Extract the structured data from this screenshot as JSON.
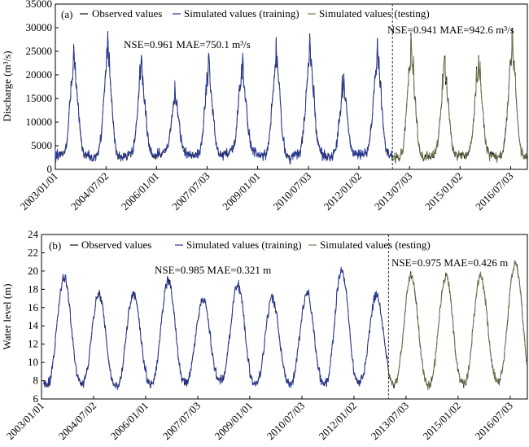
{
  "chart_data": [
    {
      "type": "line",
      "panel_label": "(a)",
      "ylabel": "Discharge (m³/s)",
      "xlabel": "",
      "ylim": [
        0,
        35000
      ],
      "y_ticks": [
        0,
        5000,
        10000,
        15000,
        20000,
        25000,
        30000,
        35000
      ],
      "x_tick_labels": [
        "2003/01/01",
        "2004/07/02",
        "2006/01/01",
        "2007/07/03",
        "2009/01/01",
        "2010/07/03",
        "2012/01/02",
        "2013/07/03",
        "2015/01/02",
        "2016/07/03"
      ],
      "legend": [
        "Observed values",
        "Simulated values (training)",
        "Simulated values (testing)"
      ],
      "legend_position": "top",
      "series_colors": {
        "observed": "#111111",
        "training": "#2a3a9c",
        "testing": "#6f7a4e"
      },
      "annotations": [
        {
          "text": "NSE=0.961 MAE=750.1  m³/s",
          "region": "training"
        },
        {
          "text": "NSE=0.941 MAE=942.6 m³/s",
          "region": "testing"
        }
      ],
      "train_test_split": "2012/12/31",
      "annual_peaks": {
        "years": [
          2003,
          2004,
          2005,
          2006,
          2007,
          2008,
          2009,
          2010,
          2011,
          2012,
          2013,
          2014,
          2015,
          2016
        ],
        "peak_values": [
          26500,
          29300,
          24200,
          18000,
          24000,
          24000,
          28000,
          28800,
          20300,
          27800,
          29000,
          24000,
          24200,
          30000
        ],
        "baseflow": [
          3000,
          2500,
          2800,
          3200,
          3000,
          3500,
          2600,
          3200,
          2800,
          3000,
          2500,
          2800,
          3000,
          2700
        ]
      },
      "series": [
        {
          "name": "Observed values",
          "values_description_free": true
        },
        {
          "name": "Simulated values (training)"
        },
        {
          "name": "Simulated values (testing)"
        }
      ]
    },
    {
      "type": "line",
      "panel_label": "(b)",
      "ylabel": "Water level (m)",
      "xlabel": "",
      "ylim": [
        6,
        24
      ],
      "y_ticks": [
        6,
        8,
        10,
        12,
        14,
        16,
        18,
        20,
        22,
        24
      ],
      "x_tick_labels": [
        "2003/01/01",
        "2004/07/02",
        "2006/01/01",
        "2007/07/03",
        "2009/01/01",
        "2010/07/03",
        "2012/01/02",
        "2013/07/03",
        "2015/01/02",
        "2016/07/03"
      ],
      "legend": [
        "Observed values",
        "Simulated values (training)",
        "Simulated values (testing)"
      ],
      "legend_position": "top",
      "series_colors": {
        "observed": "#111111",
        "training": "#2a3a9c",
        "testing": "#6f7a4e"
      },
      "annotations": [
        {
          "text": "NSE=0.985 MAE=0.321 m",
          "region": "training"
        },
        {
          "text": "NSE=0.975 MAE=0.426 m",
          "region": "testing"
        }
      ],
      "train_test_split": "2012/12/31",
      "annual_peaks": {
        "years": [
          2003,
          2004,
          2005,
          2006,
          2007,
          2008,
          2009,
          2010,
          2011,
          2012,
          2013,
          2014,
          2015,
          2016
        ],
        "peak_values": [
          19.3,
          17.5,
          17.5,
          19.0,
          17.0,
          18.5,
          17.0,
          17.5,
          20.2,
          17.5,
          19.6,
          19.5,
          19.5,
          21.0
        ],
        "trough_values": [
          7.6,
          7.6,
          7.3,
          7.6,
          7.8,
          8.0,
          7.6,
          7.6,
          7.5,
          7.9,
          7.6,
          7.5,
          7.6,
          8.0
        ]
      },
      "series": [
        {
          "name": "Observed values"
        },
        {
          "name": "Simulated values (training)"
        },
        {
          "name": "Simulated values (testing)"
        }
      ]
    }
  ]
}
